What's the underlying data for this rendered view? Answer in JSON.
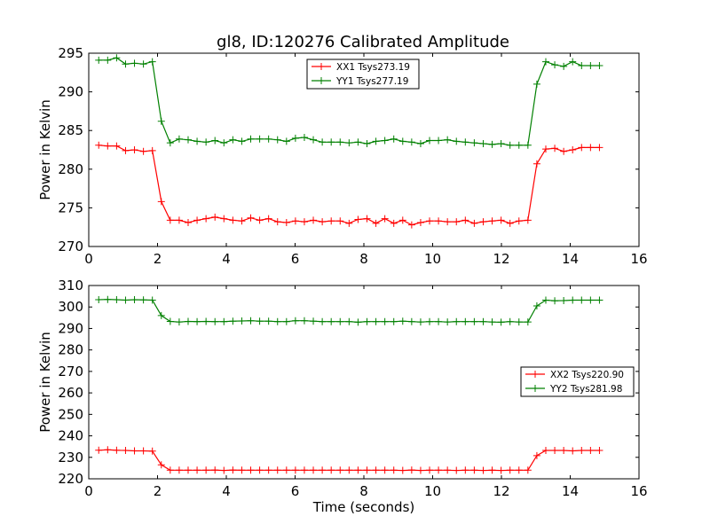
{
  "title": "gl8, ID:120276 Calibrated Amplitude",
  "chart_data": [
    {
      "type": "line",
      "xlabel": "",
      "ylabel": "Power in Kelvin",
      "xlim": [
        0,
        16
      ],
      "ylim": [
        270,
        295
      ],
      "xticks": [
        "0",
        "2",
        "4",
        "6",
        "8",
        "10",
        "12",
        "14",
        "16"
      ],
      "yticks": [
        "270",
        "275",
        "280",
        "285",
        "290",
        "295"
      ],
      "legend": "top-center",
      "x": [
        0.29,
        0.55,
        0.81,
        1.07,
        1.33,
        1.59,
        1.85,
        2.11,
        2.37,
        2.63,
        2.89,
        3.15,
        3.41,
        3.67,
        3.93,
        4.19,
        4.45,
        4.71,
        4.97,
        5.23,
        5.49,
        5.75,
        6.01,
        6.27,
        6.53,
        6.79,
        7.05,
        7.31,
        7.57,
        7.83,
        8.09,
        8.35,
        8.61,
        8.87,
        9.13,
        9.39,
        9.65,
        9.91,
        10.17,
        10.43,
        10.69,
        10.95,
        11.21,
        11.47,
        11.73,
        11.99,
        12.25,
        12.51,
        12.77,
        13.03,
        13.29,
        13.55,
        13.81,
        14.07,
        14.33,
        14.59,
        14.85
      ],
      "series": [
        {
          "name": "XX1 Tsys273.19",
          "color": "#ff0000",
          "values": [
            283.1,
            283.0,
            283.0,
            282.4,
            282.5,
            282.3,
            282.4,
            275.8,
            273.4,
            273.4,
            273.1,
            273.4,
            273.6,
            273.8,
            273.6,
            273.4,
            273.3,
            273.7,
            273.4,
            273.6,
            273.2,
            273.1,
            273.3,
            273.2,
            273.4,
            273.2,
            273.3,
            273.3,
            273.0,
            273.5,
            273.6,
            273.0,
            273.6,
            273.0,
            273.4,
            272.8,
            273.1,
            273.3,
            273.3,
            273.2,
            273.2,
            273.4,
            273.0,
            273.2,
            273.3,
            273.4,
            273.0,
            273.3,
            273.4,
            280.7,
            282.6,
            282.7,
            282.3,
            282.5,
            282.8,
            282.8,
            282.8
          ]
        },
        {
          "name": "YY1 Tsys277.19",
          "color": "#008000",
          "values": [
            294.1,
            294.1,
            294.4,
            293.6,
            293.7,
            293.6,
            293.9,
            286.2,
            283.4,
            283.9,
            283.8,
            283.6,
            283.5,
            283.7,
            283.4,
            283.8,
            283.6,
            283.9,
            283.9,
            283.9,
            283.8,
            283.6,
            284.0,
            284.1,
            283.8,
            283.5,
            283.5,
            283.5,
            283.4,
            283.5,
            283.3,
            283.6,
            283.7,
            283.9,
            283.6,
            283.5,
            283.3,
            283.7,
            283.7,
            283.8,
            283.6,
            283.5,
            283.4,
            283.3,
            283.2,
            283.3,
            283.1,
            283.1,
            283.1,
            291.0,
            293.9,
            293.5,
            293.3,
            293.9,
            293.4,
            293.4,
            293.4
          ]
        }
      ]
    },
    {
      "type": "line",
      "xlabel": "Time (seconds)",
      "ylabel": "Power in Kelvin",
      "xlim": [
        0,
        16
      ],
      "ylim": [
        220,
        310
      ],
      "xticks": [
        "0",
        "2",
        "4",
        "6",
        "8",
        "10",
        "12",
        "14",
        "16"
      ],
      "yticks": [
        "220",
        "230",
        "240",
        "250",
        "260",
        "270",
        "280",
        "290",
        "300",
        "310"
      ],
      "legend": "center-right",
      "x": [
        0.29,
        0.55,
        0.81,
        1.07,
        1.33,
        1.59,
        1.85,
        2.11,
        2.37,
        2.63,
        2.89,
        3.15,
        3.41,
        3.67,
        3.93,
        4.19,
        4.45,
        4.71,
        4.97,
        5.23,
        5.49,
        5.75,
        6.01,
        6.27,
        6.53,
        6.79,
        7.05,
        7.31,
        7.57,
        7.83,
        8.09,
        8.35,
        8.61,
        8.87,
        9.13,
        9.39,
        9.65,
        9.91,
        10.17,
        10.43,
        10.69,
        10.95,
        11.21,
        11.47,
        11.73,
        11.99,
        12.25,
        12.51,
        12.77,
        13.03,
        13.29,
        13.55,
        13.81,
        14.07,
        14.33,
        14.59,
        14.85
      ],
      "series": [
        {
          "name": "XX2 Tsys220.90",
          "color": "#ff0000",
          "values": [
            233.3,
            233.5,
            233.3,
            233.2,
            233.0,
            233.0,
            232.9,
            226.5,
            224.0,
            224.0,
            224.0,
            224.0,
            224.0,
            224.1,
            223.9,
            224.1,
            224.0,
            224.0,
            224.0,
            224.0,
            224.0,
            224.0,
            224.0,
            224.0,
            224.0,
            224.0,
            224.0,
            224.0,
            224.0,
            224.0,
            224.0,
            224.0,
            224.0,
            224.0,
            223.9,
            224.1,
            223.9,
            224.0,
            224.0,
            224.0,
            223.9,
            224.0,
            224.0,
            223.9,
            224.0,
            223.9,
            224.0,
            224.0,
            224.0,
            230.8,
            233.2,
            233.2,
            233.2,
            233.0,
            233.2,
            233.2,
            233.2
          ]
        },
        {
          "name": "YY2 Tsys281.98",
          "color": "#008000",
          "values": [
            303.4,
            303.5,
            303.4,
            303.2,
            303.4,
            303.3,
            303.2,
            296.0,
            293.3,
            293.0,
            293.3,
            293.2,
            293.3,
            293.2,
            293.2,
            293.4,
            293.5,
            293.6,
            293.4,
            293.4,
            293.2,
            293.2,
            293.6,
            293.6,
            293.4,
            293.2,
            293.2,
            293.2,
            293.2,
            292.9,
            293.2,
            293.2,
            293.2,
            293.2,
            293.4,
            293.2,
            293.0,
            293.2,
            293.2,
            293.0,
            293.2,
            293.2,
            293.2,
            293.2,
            293.0,
            292.9,
            293.2,
            293.0,
            293.0,
            300.5,
            303.2,
            302.9,
            303.0,
            303.2,
            303.2,
            303.2,
            303.2
          ]
        }
      ]
    }
  ]
}
